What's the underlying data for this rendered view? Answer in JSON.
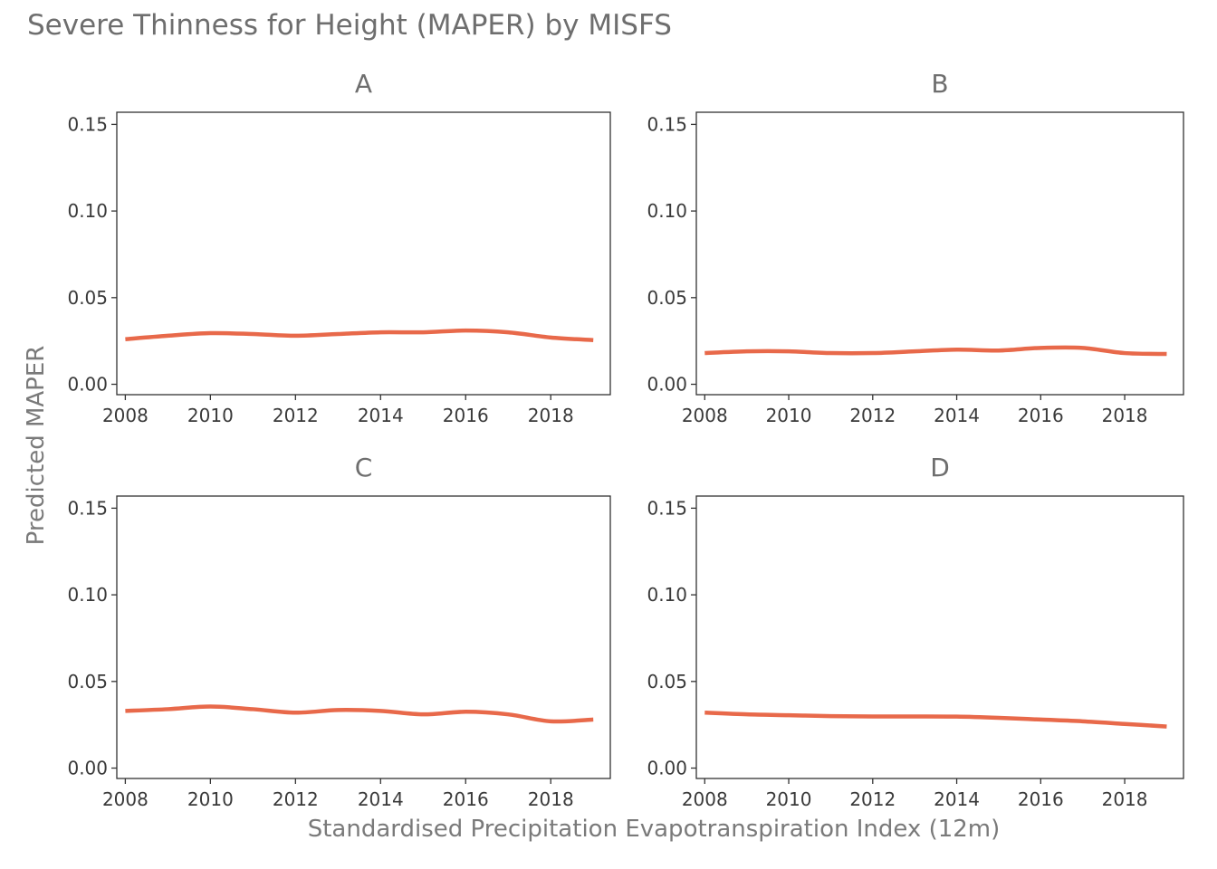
{
  "chart_data": {
    "type": "line",
    "title": "Severe Thinness for Height (MAPER) by MISFS",
    "xlabel": "Standardised Precipitation Evapotranspiration Index (12m)",
    "ylabel": "Predicted MAPER",
    "xlim": [
      2007.8,
      2019.4
    ],
    "ylim": [
      -0.006,
      0.157
    ],
    "x_ticks": [
      2008,
      2010,
      2012,
      2014,
      2016,
      2018
    ],
    "y_ticks": [
      "0.00",
      "0.05",
      "0.10",
      "0.15"
    ],
    "y_tick_values": [
      0,
      0.05,
      0.1,
      0.15
    ],
    "line_color": "#e8694a",
    "grid": false,
    "panels": [
      {
        "label": "A",
        "x": [
          2008,
          2009,
          2010,
          2011,
          2012,
          2013,
          2014,
          2015,
          2016,
          2017,
          2018,
          2019
        ],
        "values": [
          0.026,
          0.028,
          0.0295,
          0.029,
          0.028,
          0.029,
          0.03,
          0.03,
          0.031,
          0.03,
          0.027,
          0.0255
        ]
      },
      {
        "label": "B",
        "x": [
          2008,
          2009,
          2010,
          2011,
          2012,
          2013,
          2014,
          2015,
          2016,
          2017,
          2018,
          2019
        ],
        "values": [
          0.018,
          0.019,
          0.019,
          0.018,
          0.018,
          0.019,
          0.02,
          0.0195,
          0.021,
          0.021,
          0.018,
          0.0175
        ]
      },
      {
        "label": "C",
        "x": [
          2008,
          2009,
          2010,
          2011,
          2012,
          2013,
          2014,
          2015,
          2016,
          2017,
          2018,
          2019
        ],
        "values": [
          0.033,
          0.034,
          0.0355,
          0.034,
          0.032,
          0.0335,
          0.033,
          0.031,
          0.0325,
          0.031,
          0.027,
          0.028
        ]
      },
      {
        "label": "D",
        "x": [
          2008,
          2009,
          2010,
          2011,
          2012,
          2013,
          2014,
          2015,
          2016,
          2017,
          2018,
          2019
        ],
        "values": [
          0.032,
          0.031,
          0.0305,
          0.03,
          0.0298,
          0.0298,
          0.0297,
          0.029,
          0.028,
          0.027,
          0.0255,
          0.024
        ]
      }
    ]
  }
}
